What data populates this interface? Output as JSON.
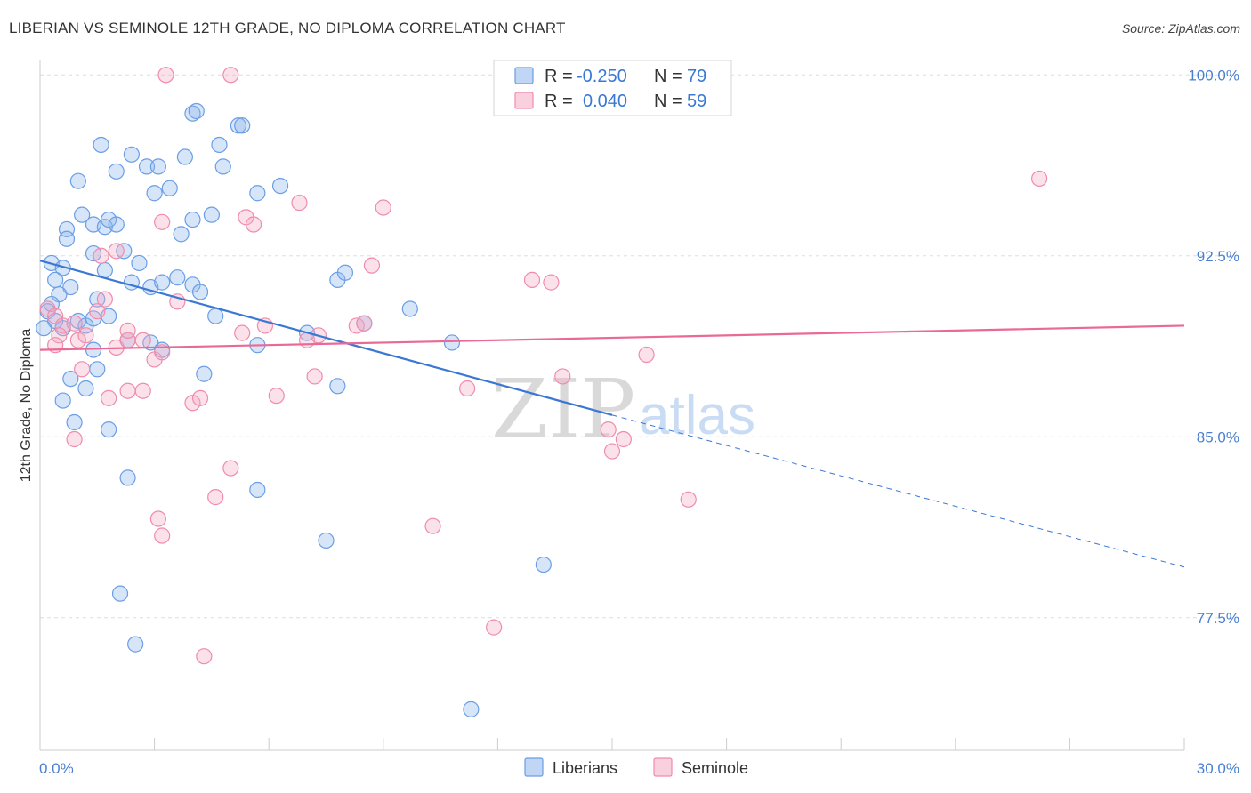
{
  "chart_data": {
    "type": "scatter",
    "title": "LIBERIAN VS SEMINOLE 12TH GRADE, NO DIPLOMA CORRELATION CHART",
    "source": "Source: ZipAtlas.com",
    "xlabel": "",
    "ylabel": "12th Grade, No Diploma",
    "xlim": [
      0,
      30
    ],
    "ylim": [
      72.0,
      100.6
    ],
    "x_tick_labels": [
      {
        "value": 0,
        "label": "0.0%"
      },
      {
        "value": 30,
        "label": "30.0%"
      }
    ],
    "y_tick_labels": [
      {
        "value": 100.0,
        "label": "100.0%"
      },
      {
        "value": 92.5,
        "label": "92.5%"
      },
      {
        "value": 85.0,
        "label": "85.0%"
      },
      {
        "value": 77.5,
        "label": "77.5%"
      }
    ],
    "grid": true,
    "legend_position": "top-center",
    "watermark": {
      "text1": "ZIP",
      "text2": "atlas"
    },
    "stats_legend": [
      {
        "r_label": "R =",
        "r_value": "-0.250",
        "n_label": "N =",
        "n_value": "79",
        "color": "#6a9ee6"
      },
      {
        "r_label": "R =",
        "r_value": "0.040",
        "n_label": "N =",
        "n_value": "59",
        "color": "#f08cab"
      }
    ],
    "series": [
      {
        "name": "Liberians",
        "color": "#6a9ee6",
        "fill": "rgba(140,180,235,0.35)",
        "trend": {
          "x0": 0,
          "y0": 92.3,
          "x1": 15.0,
          "y1": 85.9,
          "x_dash_end": 30,
          "y_dash_end": 79.6,
          "color": "#3a78d4"
        },
        "points": [
          [
            0.3,
            92.2
          ],
          [
            0.6,
            92.0
          ],
          [
            0.4,
            91.5
          ],
          [
            0.8,
            91.2
          ],
          [
            0.5,
            90.9
          ],
          [
            0.3,
            90.5
          ],
          [
            0.2,
            90.2
          ],
          [
            0.4,
            89.8
          ],
          [
            0.6,
            89.5
          ],
          [
            0.1,
            89.5
          ],
          [
            1.0,
            89.8
          ],
          [
            1.2,
            89.6
          ],
          [
            1.4,
            89.9
          ],
          [
            1.5,
            90.7
          ],
          [
            1.8,
            90.0
          ],
          [
            0.8,
            87.4
          ],
          [
            1.2,
            87.0
          ],
          [
            1.5,
            87.8
          ],
          [
            0.9,
            85.6
          ],
          [
            1.8,
            85.3
          ],
          [
            0.7,
            93.6
          ],
          [
            0.7,
            93.2
          ],
          [
            1.1,
            94.2
          ],
          [
            1.4,
            93.8
          ],
          [
            1.7,
            93.7
          ],
          [
            1.8,
            94.0
          ],
          [
            2.0,
            93.8
          ],
          [
            1.4,
            92.6
          ],
          [
            1.7,
            91.9
          ],
          [
            2.2,
            92.7
          ],
          [
            2.4,
            91.4
          ],
          [
            2.6,
            92.2
          ],
          [
            2.9,
            91.2
          ],
          [
            3.2,
            91.4
          ],
          [
            3.6,
            91.6
          ],
          [
            4.0,
            91.3
          ],
          [
            4.2,
            91.0
          ],
          [
            4.6,
            90.0
          ],
          [
            2.3,
            89.0
          ],
          [
            2.9,
            88.9
          ],
          [
            3.2,
            88.6
          ],
          [
            4.3,
            87.6
          ],
          [
            5.7,
            88.8
          ],
          [
            7.0,
            89.3
          ],
          [
            7.8,
            87.1
          ],
          [
            7.8,
            91.5
          ],
          [
            8.0,
            91.8
          ],
          [
            8.5,
            89.7
          ],
          [
            9.7,
            90.3
          ],
          [
            10.8,
            88.9
          ],
          [
            1.0,
            95.6
          ],
          [
            1.6,
            97.1
          ],
          [
            2.4,
            96.7
          ],
          [
            2.0,
            96.0
          ],
          [
            2.8,
            96.2
          ],
          [
            3.0,
            95.1
          ],
          [
            3.1,
            96.2
          ],
          [
            3.4,
            95.3
          ],
          [
            3.8,
            96.6
          ],
          [
            4.0,
            98.4
          ],
          [
            4.1,
            98.5
          ],
          [
            4.7,
            97.1
          ],
          [
            4.8,
            96.2
          ],
          [
            5.2,
            97.9
          ],
          [
            5.3,
            97.9
          ],
          [
            5.7,
            95.1
          ],
          [
            6.3,
            95.4
          ],
          [
            3.7,
            93.4
          ],
          [
            4.0,
            94.0
          ],
          [
            4.5,
            94.2
          ],
          [
            2.3,
            83.3
          ],
          [
            5.7,
            82.8
          ],
          [
            7.5,
            80.7
          ],
          [
            13.2,
            79.7
          ],
          [
            2.1,
            78.5
          ],
          [
            2.5,
            76.4
          ],
          [
            11.3,
            73.7
          ],
          [
            0.6,
            86.5
          ],
          [
            1.4,
            88.6
          ]
        ]
      },
      {
        "name": "Seminole",
        "color": "#f08cab",
        "fill": "rgba(244,170,195,0.35)",
        "trend": {
          "x0": 0,
          "y0": 88.6,
          "x1": 30,
          "y1": 89.6,
          "color": "#e96a94"
        },
        "points": [
          [
            0.2,
            90.3
          ],
          [
            0.4,
            90.0
          ],
          [
            0.6,
            89.6
          ],
          [
            0.9,
            89.7
          ],
          [
            0.5,
            89.2
          ],
          [
            0.4,
            88.8
          ],
          [
            1.0,
            89.0
          ],
          [
            1.2,
            89.2
          ],
          [
            1.5,
            90.2
          ],
          [
            1.7,
            90.7
          ],
          [
            1.6,
            92.5
          ],
          [
            2.0,
            92.7
          ],
          [
            1.1,
            87.8
          ],
          [
            2.0,
            88.7
          ],
          [
            2.3,
            89.0
          ],
          [
            2.3,
            89.4
          ],
          [
            2.7,
            89.0
          ],
          [
            3.0,
            88.2
          ],
          [
            3.2,
            88.5
          ],
          [
            1.8,
            86.6
          ],
          [
            2.3,
            86.9
          ],
          [
            2.7,
            86.9
          ],
          [
            0.9,
            84.9
          ],
          [
            3.6,
            90.6
          ],
          [
            4.0,
            86.4
          ],
          [
            4.2,
            86.6
          ],
          [
            5.3,
            89.3
          ],
          [
            5.9,
            89.6
          ],
          [
            6.2,
            86.7
          ],
          [
            7.0,
            89.0
          ],
          [
            7.2,
            87.5
          ],
          [
            7.3,
            89.2
          ],
          [
            8.3,
            89.6
          ],
          [
            8.5,
            89.7
          ],
          [
            8.7,
            92.1
          ],
          [
            9.0,
            94.5
          ],
          [
            6.8,
            94.7
          ],
          [
            5.4,
            94.1
          ],
          [
            5.6,
            93.8
          ],
          [
            3.2,
            93.9
          ],
          [
            11.2,
            87.0
          ],
          [
            12.9,
            91.5
          ],
          [
            13.4,
            91.4
          ],
          [
            13.7,
            87.5
          ],
          [
            14.9,
            85.3
          ],
          [
            15.0,
            84.4
          ],
          [
            15.3,
            84.9
          ],
          [
            15.9,
            88.4
          ],
          [
            17.0,
            82.4
          ],
          [
            26.2,
            95.7
          ],
          [
            5.0,
            83.7
          ],
          [
            4.6,
            82.5
          ],
          [
            3.1,
            81.6
          ],
          [
            3.2,
            80.9
          ],
          [
            10.3,
            81.3
          ],
          [
            11.9,
            77.1
          ],
          [
            4.3,
            75.9
          ],
          [
            3.3,
            100.0
          ],
          [
            5.0,
            100.0
          ]
        ]
      }
    ]
  }
}
